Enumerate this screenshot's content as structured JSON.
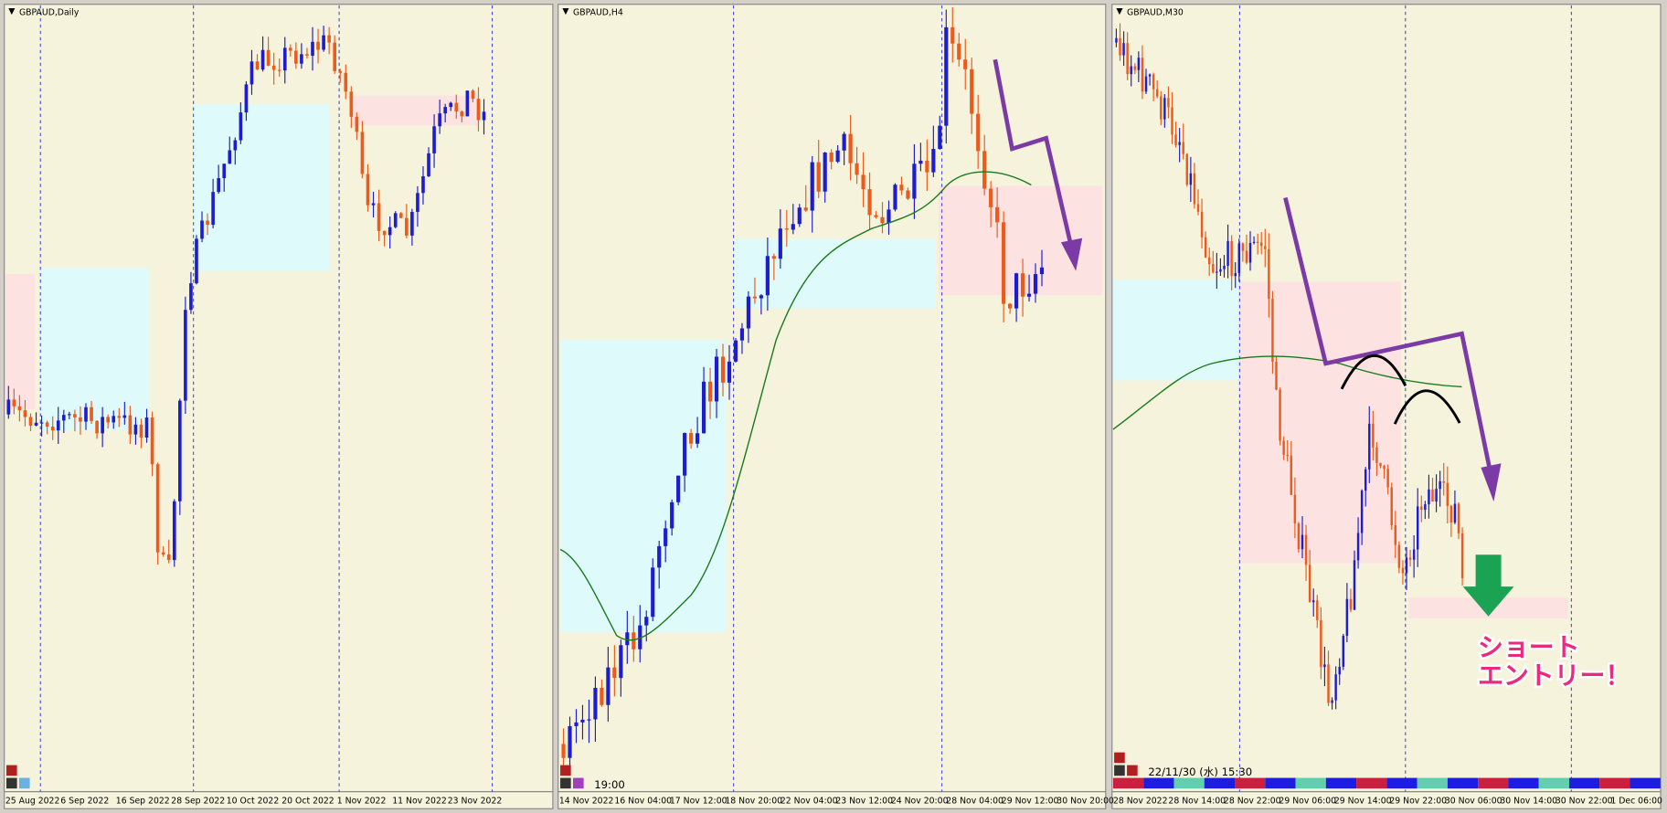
{
  "panels": [
    {
      "title": "GBPAUD,Daily",
      "x_labels": [
        "25 Aug 2022",
        "6 Sep 2022",
        "16 Sep 2022",
        "28 Sep 2022",
        "10 Oct 2022",
        "20 Oct 2022",
        "1 Nov 2022",
        "11 Nov 2022",
        "23 Nov 2022"
      ]
    },
    {
      "title": "GBPAUD,H4",
      "time_label": "19:00",
      "x_labels": [
        "14 Nov 2022",
        "16 Nov 04:00",
        "17 Nov 12:00",
        "18 Nov 20:00",
        "22 Nov 04:00",
        "23 Nov 12:00",
        "24 Nov 20:00",
        "28 Nov 04:00",
        "29 Nov 12:00",
        "30 Nov 20:00"
      ]
    },
    {
      "title": "GBPAUD,M30",
      "time_label": "22/11/30 (水) 15:30",
      "x_labels": [
        "28 Nov 2022",
        "28 Nov 14:00",
        "28 Nov 22:00",
        "29 Nov 06:00",
        "29 Nov 14:00",
        "29 Nov 22:00",
        "30 Nov 06:00",
        "30 Nov 14:00",
        "30 Nov 22:00",
        "1 Dec 06:00"
      ],
      "annotation": [
        "ショート",
        "エントリー！"
      ]
    }
  ]
}
